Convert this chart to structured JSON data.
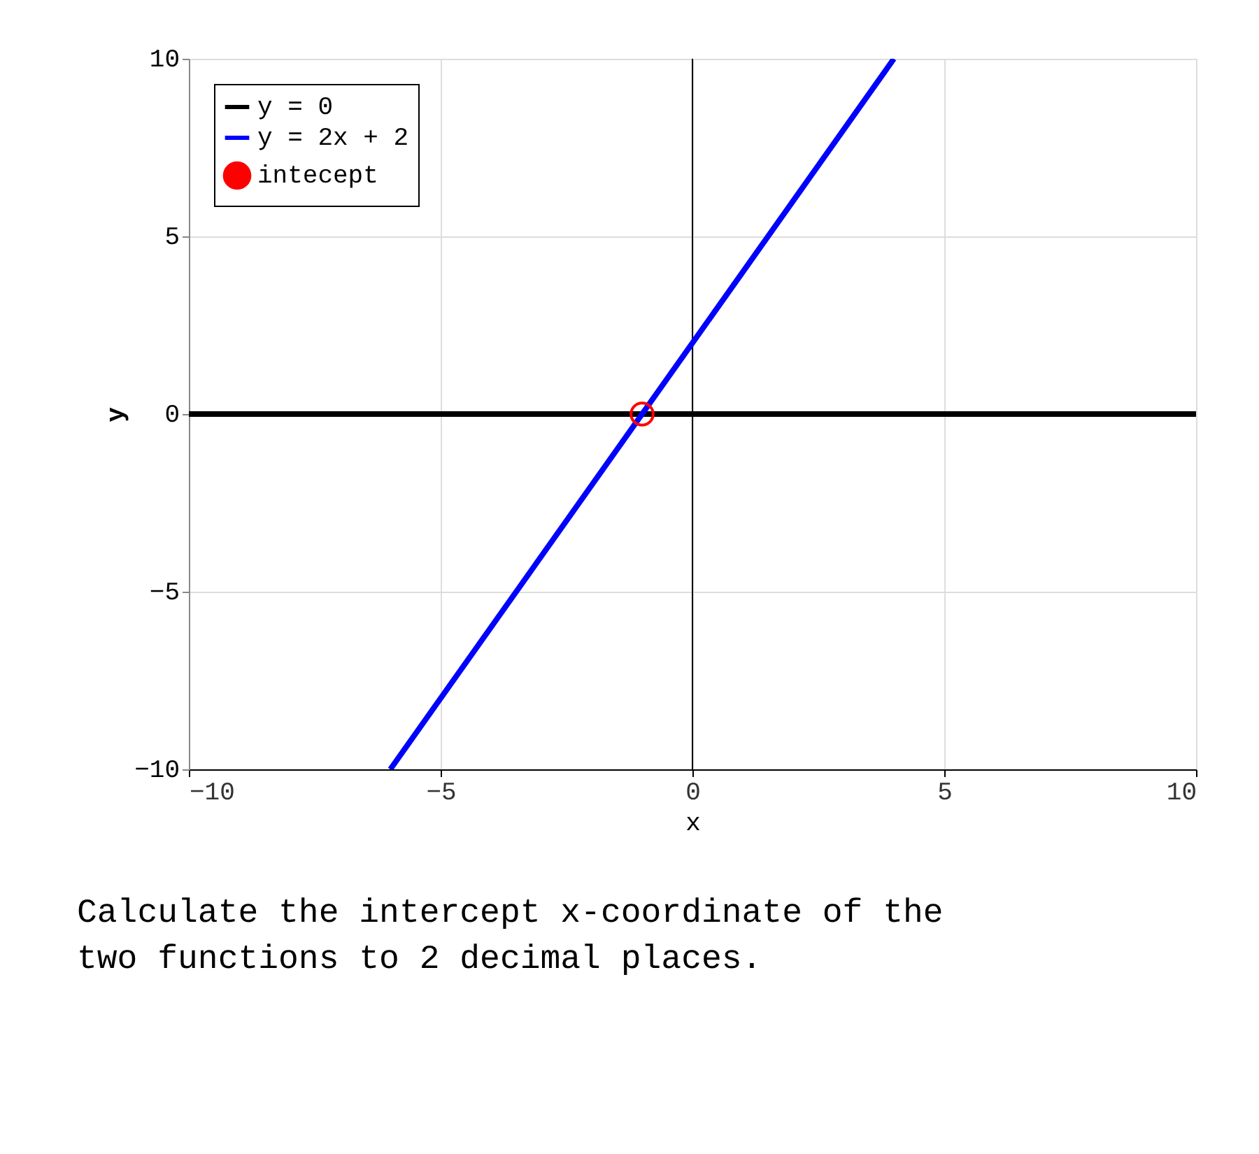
{
  "chart_data": {
    "type": "line",
    "xlabel": "x",
    "ylabel": "y",
    "xlim": [
      -10,
      10
    ],
    "ylim": [
      -10,
      10
    ],
    "xticks": [
      -10,
      -5,
      0,
      5,
      10
    ],
    "yticks": [
      -10,
      -5,
      0,
      5,
      10
    ],
    "grid": true,
    "legend": "top left",
    "series": [
      {
        "name": "y = 0",
        "color": "#000000",
        "x": [
          -10,
          10
        ],
        "values": [
          0,
          0
        ]
      },
      {
        "name": "y = 2x + 2",
        "color": "#0000ff",
        "x": [
          -6,
          4
        ],
        "values": [
          -10,
          10
        ]
      },
      {
        "name": "intecept",
        "type": "scatter",
        "marker": "circle",
        "color": "#ff0000",
        "x": [
          -1
        ],
        "values": [
          0
        ]
      }
    ],
    "ref_lines": [
      {
        "axis": "x",
        "value": 0,
        "color": "#000000"
      }
    ],
    "annotations": [
      "Calculate the intercept x-coordinate of the\ntwo functions to 2 decimal places."
    ]
  }
}
